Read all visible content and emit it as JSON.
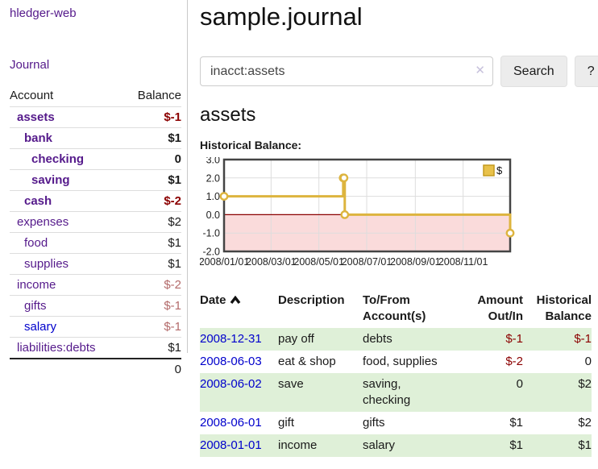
{
  "colors": {
    "link_purple": "#551a8b",
    "link_blue": "#0000cc",
    "amount_negative": "#8b0000",
    "amount_negative_muted": "#b36a6a",
    "row_shaded_green": "#dff0d8",
    "chart_line_gold": "#ddb43e",
    "chart_negative_region_pink": "#fadbdb",
    "chart_zero_line_red": "#8b0000"
  },
  "sidebar": {
    "app_title": "hledger-web",
    "nav_journal": "Journal",
    "accounts_table": {
      "col_account": "Account",
      "col_balance": "Balance",
      "rows": [
        {
          "label": "assets",
          "indent": 0,
          "bold": true,
          "link": "purple",
          "balance": "$-1",
          "style": "neg"
        },
        {
          "label": "bank",
          "indent": 1,
          "bold": true,
          "link": "purple",
          "balance": "$1",
          "style": ""
        },
        {
          "label": "checking",
          "indent": 2,
          "bold": true,
          "link": "purple",
          "balance": "0",
          "style": ""
        },
        {
          "label": "saving",
          "indent": 2,
          "bold": true,
          "link": "purple",
          "balance": "$1",
          "style": ""
        },
        {
          "label": "cash",
          "indent": 1,
          "bold": true,
          "link": "purple",
          "balance": "$-2",
          "style": "neg"
        },
        {
          "label": "expenses",
          "indent": 0,
          "bold": false,
          "link": "purple",
          "balance": "$2",
          "style": ""
        },
        {
          "label": "food",
          "indent": 1,
          "bold": false,
          "link": "purple",
          "balance": "$1",
          "style": ""
        },
        {
          "label": "supplies",
          "indent": 1,
          "bold": false,
          "link": "purple",
          "balance": "$1",
          "style": ""
        },
        {
          "label": "income",
          "indent": 0,
          "bold": false,
          "link": "purple",
          "balance": "$-2",
          "style": "rose"
        },
        {
          "label": "gifts",
          "indent": 1,
          "bold": false,
          "link": "purple",
          "balance": "$-1",
          "style": "rose"
        },
        {
          "label": "salary",
          "indent": 1,
          "bold": false,
          "link": "blue",
          "balance": "$-1",
          "style": "rose"
        },
        {
          "label": "liabilities:debts",
          "indent": 0,
          "bold": false,
          "link": "purple",
          "balance": "$1",
          "style": ""
        }
      ],
      "total": "0"
    }
  },
  "main": {
    "title": "sample.journal",
    "search": {
      "value": "inacct:assets",
      "clear_icon": "✕",
      "search_button": "Search",
      "help_button": "?"
    },
    "account_heading": "assets",
    "chart_label": "Historical Balance:",
    "register_table": {
      "headers": {
        "date": "Date",
        "description": "Description",
        "accounts": "To/From Account(s)",
        "amount": "Amount Out/In",
        "balance": "Historical Balance"
      },
      "rows": [
        {
          "date": "2008-12-31",
          "description": "pay off",
          "accounts": "debts",
          "amount": "$-1",
          "amount_style": "neg",
          "balance": "$-1",
          "balance_style": "neg",
          "shaded": true
        },
        {
          "date": "2008-06-03",
          "description": "eat & shop",
          "accounts": "food, supplies",
          "amount": "$-2",
          "amount_style": "neg",
          "balance": "0",
          "balance_style": "",
          "shaded": false
        },
        {
          "date": "2008-06-02",
          "description": "save",
          "accounts": "saving, checking",
          "amount": "0",
          "amount_style": "",
          "balance": "$2",
          "balance_style": "",
          "shaded": true
        },
        {
          "date": "2008-06-01",
          "description": "gift",
          "accounts": "gifts",
          "amount": "$1",
          "amount_style": "",
          "balance": "$2",
          "balance_style": "",
          "shaded": false
        },
        {
          "date": "2008-01-01",
          "description": "income",
          "accounts": "salary",
          "amount": "$1",
          "amount_style": "",
          "balance": "$1",
          "balance_style": "",
          "shaded": true
        }
      ]
    }
  },
  "chart_data": {
    "type": "line",
    "title": "Historical Balance:",
    "step": true,
    "x_domain": [
      "2008-01-01",
      "2008-12-31"
    ],
    "ylim": [
      -2,
      3
    ],
    "y_ticks": [
      "3.0",
      "2.0",
      "1.0",
      "0.0",
      "-1.0",
      "-2.0"
    ],
    "y_tick_values": [
      3,
      2,
      1,
      0,
      -1,
      -2
    ],
    "x_ticks": [
      "2008/01/01",
      "2008/03/01",
      "2008/05/01",
      "2008/07/01",
      "2008/09/01",
      "2008/11/01"
    ],
    "x_tick_dates": [
      "2008-01-01",
      "2008-03-01",
      "2008-05-01",
      "2008-07-01",
      "2008-09-01",
      "2008-11-01"
    ],
    "grid": true,
    "legend_position": "top-right",
    "series": [
      {
        "name": "$",
        "color": "#ddb43e",
        "points": [
          {
            "x": "2008-01-01",
            "y": 1
          },
          {
            "x": "2008-06-01",
            "y": 2
          },
          {
            "x": "2008-06-02",
            "y": 2
          },
          {
            "x": "2008-06-03",
            "y": 0
          },
          {
            "x": "2008-12-31",
            "y": -1
          }
        ]
      }
    ],
    "annotations": {
      "zero_line_color": "#8b0000",
      "negative_region": {
        "from_y": 0,
        "to_y": -2,
        "color": "#fadbdb"
      }
    }
  }
}
